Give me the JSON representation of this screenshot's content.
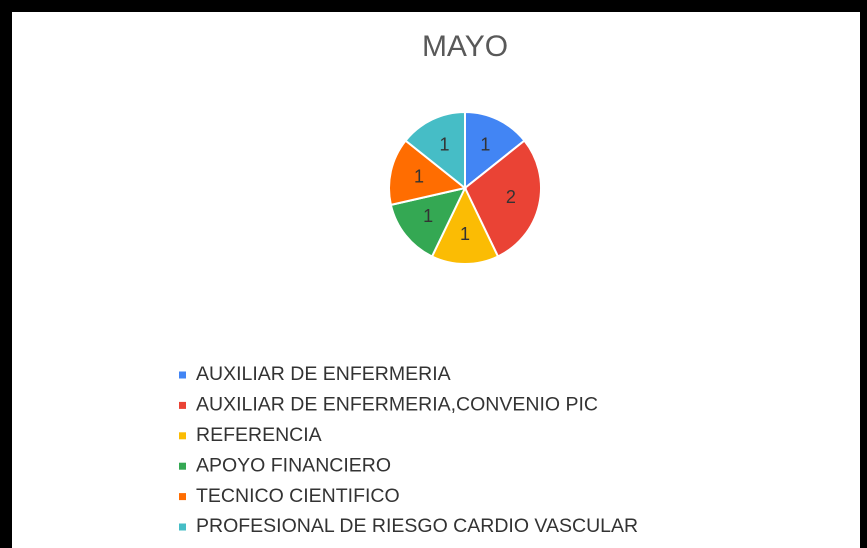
{
  "chart_data": {
    "type": "pie",
    "title": "MAYO",
    "categories": [
      "AUXILIAR DE ENFERMERIA",
      "AUXILIAR DE ENFERMERIA,CONVENIO PIC",
      "REFERENCIA",
      "APOYO FINANCIERO",
      "TECNICO CIENTIFICO",
      "PROFESIONAL DE RIESGO CARDIO VASCULAR"
    ],
    "values": [
      1,
      2,
      1,
      1,
      1,
      1
    ],
    "colors": [
      "#4285f4",
      "#ea4335",
      "#fbbc04",
      "#34a853",
      "#ff6d01",
      "#46bdc6"
    ],
    "legend": "bottom"
  }
}
